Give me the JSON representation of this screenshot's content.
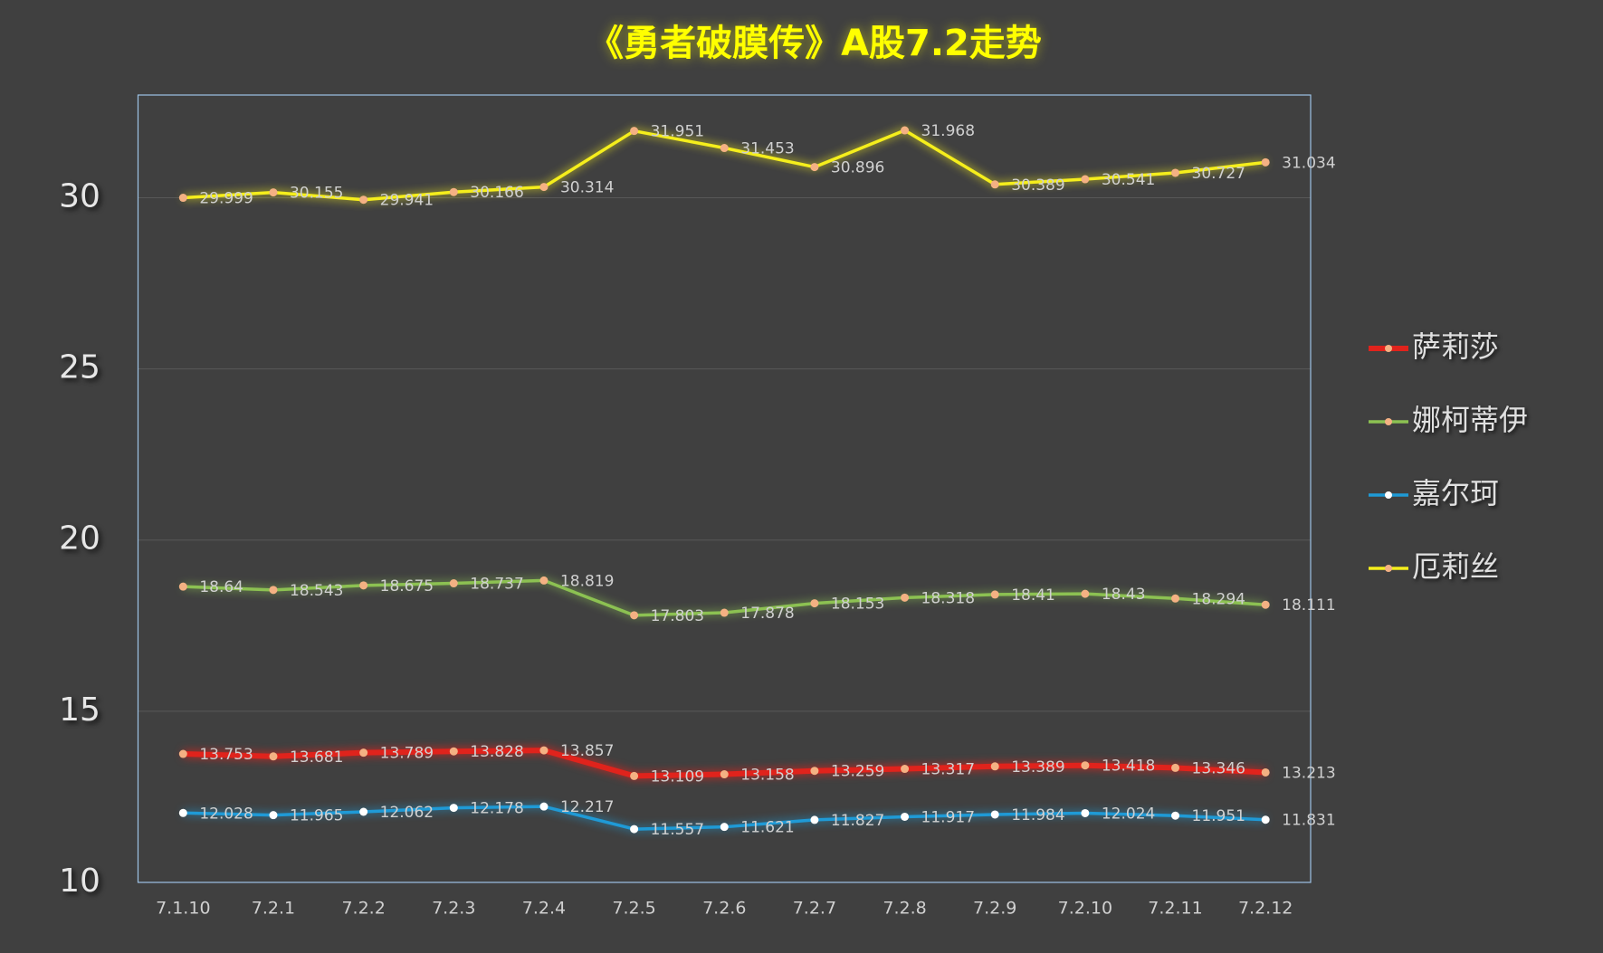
{
  "chart_data": {
    "type": "line",
    "title": "《勇者破膜传》A股7.2走势",
    "categories": [
      "7.1.10",
      "7.2.1",
      "7.2.2",
      "7.2.3",
      "7.2.4",
      "7.2.5",
      "7.2.6",
      "7.2.7",
      "7.2.8",
      "7.2.9",
      "7.2.10",
      "7.2.11",
      "7.2.12"
    ],
    "series": [
      {
        "name": "萨莉莎",
        "color": "#e0231c",
        "marker_color": "#f4b183",
        "values": [
          13.753,
          13.681,
          13.789,
          13.828,
          13.857,
          13.109,
          13.158,
          13.259,
          13.317,
          13.389,
          13.418,
          13.346,
          13.213
        ]
      },
      {
        "name": "娜柯蒂伊",
        "color": "#8cc152",
        "marker_color": "#f4b183",
        "values": [
          18.64,
          18.543,
          18.675,
          18.737,
          18.819,
          17.803,
          17.878,
          18.153,
          18.318,
          18.41,
          18.43,
          18.294,
          18.111
        ]
      },
      {
        "name": "嘉尔珂",
        "color": "#1f9ad6",
        "marker_color": "#ffffff",
        "values": [
          12.028,
          11.965,
          12.062,
          12.178,
          12.217,
          11.557,
          11.621,
          11.827,
          11.917,
          11.984,
          12.024,
          11.951,
          11.831
        ]
      },
      {
        "name": "厄莉丝",
        "color": "#f5ee1c",
        "marker_color": "#f4b183",
        "values": [
          29.999,
          30.155,
          29.941,
          30.166,
          30.314,
          31.951,
          31.453,
          30.896,
          31.968,
          30.389,
          30.541,
          30.727,
          31.034
        ]
      }
    ],
    "ylim": [
      10,
      33
    ],
    "yticks": [
      10,
      15,
      20,
      25,
      30
    ],
    "grid": true,
    "legend": "right"
  }
}
